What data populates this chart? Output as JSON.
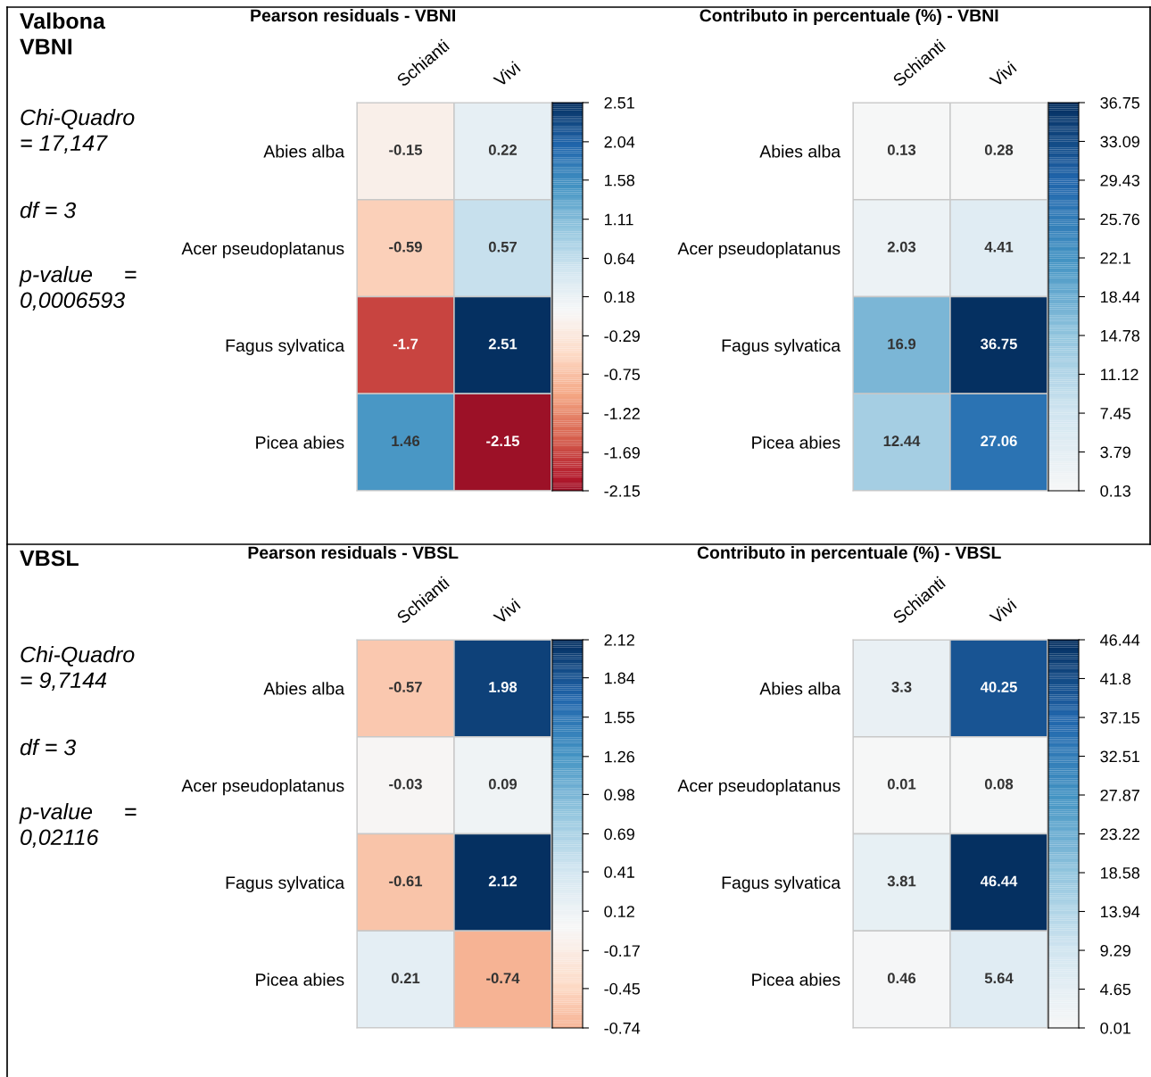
{
  "chart_data": [
    {
      "type": "other",
      "title": "Valbona\nVBNI",
      "annotations": [
        "Chi-Quadro\n= 17,147",
        "df = 3",
        "p-value     =\n0,0006593"
      ]
    },
    {
      "type": "heatmap",
      "title": "Pearson residuals - VBNI",
      "categories": [
        "Schianti",
        "Vivi"
      ],
      "y_categories": [
        "Abies alba",
        "Acer pseudoplatanus",
        "Fagus sylvatica",
        "Picea abies"
      ],
      "cells": [
        [
          -0.15,
          0.22
        ],
        [
          -0.59,
          0.57
        ],
        [
          -1.7,
          2.51
        ],
        [
          1.46,
          -2.15
        ]
      ],
      "clim": [
        -2.15,
        2.51
      ],
      "cticks": [
        -2.15,
        -1.69,
        -1.22,
        -0.75,
        -0.29,
        0.18,
        0.64,
        1.11,
        1.58,
        2.04,
        2.51
      ],
      "data_labels": true
    },
    {
      "type": "heatmap",
      "title": "Contributo in percentuale (%) - VBNI",
      "categories": [
        "Schianti",
        "Vivi"
      ],
      "y_categories": [
        "Abies alba",
        "Acer pseudoplatanus",
        "Fagus sylvatica",
        "Picea abies"
      ],
      "cells": [
        [
          0.13,
          0.28
        ],
        [
          2.03,
          4.41
        ],
        [
          16.9,
          36.75
        ],
        [
          12.44,
          27.06
        ]
      ],
      "clim": [
        0.13,
        36.75
      ],
      "cticks": [
        0.13,
        3.79,
        7.45,
        11.12,
        14.78,
        18.44,
        22.1,
        25.76,
        29.43,
        33.09,
        36.75
      ],
      "data_labels": true
    },
    {
      "type": "other",
      "title": "VBSL",
      "annotations": [
        "Chi-Quadro\n= 9,7144",
        "df = 3",
        "p-value     =\n0,02116"
      ]
    },
    {
      "type": "heatmap",
      "title": "Pearson residuals - VBSL",
      "categories": [
        "Schianti",
        "Vivi"
      ],
      "y_categories": [
        "Abies alba",
        "Acer pseudoplatanus",
        "Fagus sylvatica",
        "Picea abies"
      ],
      "cells": [
        [
          -0.57,
          1.98
        ],
        [
          -0.03,
          0.09
        ],
        [
          -0.61,
          2.12
        ],
        [
          0.21,
          -0.74
        ]
      ],
      "clim": [
        -0.74,
        2.12
      ],
      "cticks": [
        -0.74,
        -0.45,
        -0.17,
        0.12,
        0.41,
        0.69,
        0.98,
        1.26,
        1.55,
        1.84,
        2.12
      ],
      "data_labels": true
    },
    {
      "type": "heatmap",
      "title": "Contributo in percentuale (%) - VBSL",
      "categories": [
        "Schianti",
        "Vivi"
      ],
      "y_categories": [
        "Abies alba",
        "Acer pseudoplatanus",
        "Fagus sylvatica",
        "Picea abies"
      ],
      "cells": [
        [
          3.3,
          40.25
        ],
        [
          0.01,
          0.08
        ],
        [
          3.81,
          46.44
        ],
        [
          0.46,
          5.64
        ]
      ],
      "clim": [
        0.01,
        46.44
      ],
      "cticks": [
        0.01,
        4.65,
        9.29,
        13.94,
        18.58,
        23.22,
        27.87,
        32.51,
        37.15,
        41.8,
        46.44
      ],
      "data_labels": true
    }
  ]
}
